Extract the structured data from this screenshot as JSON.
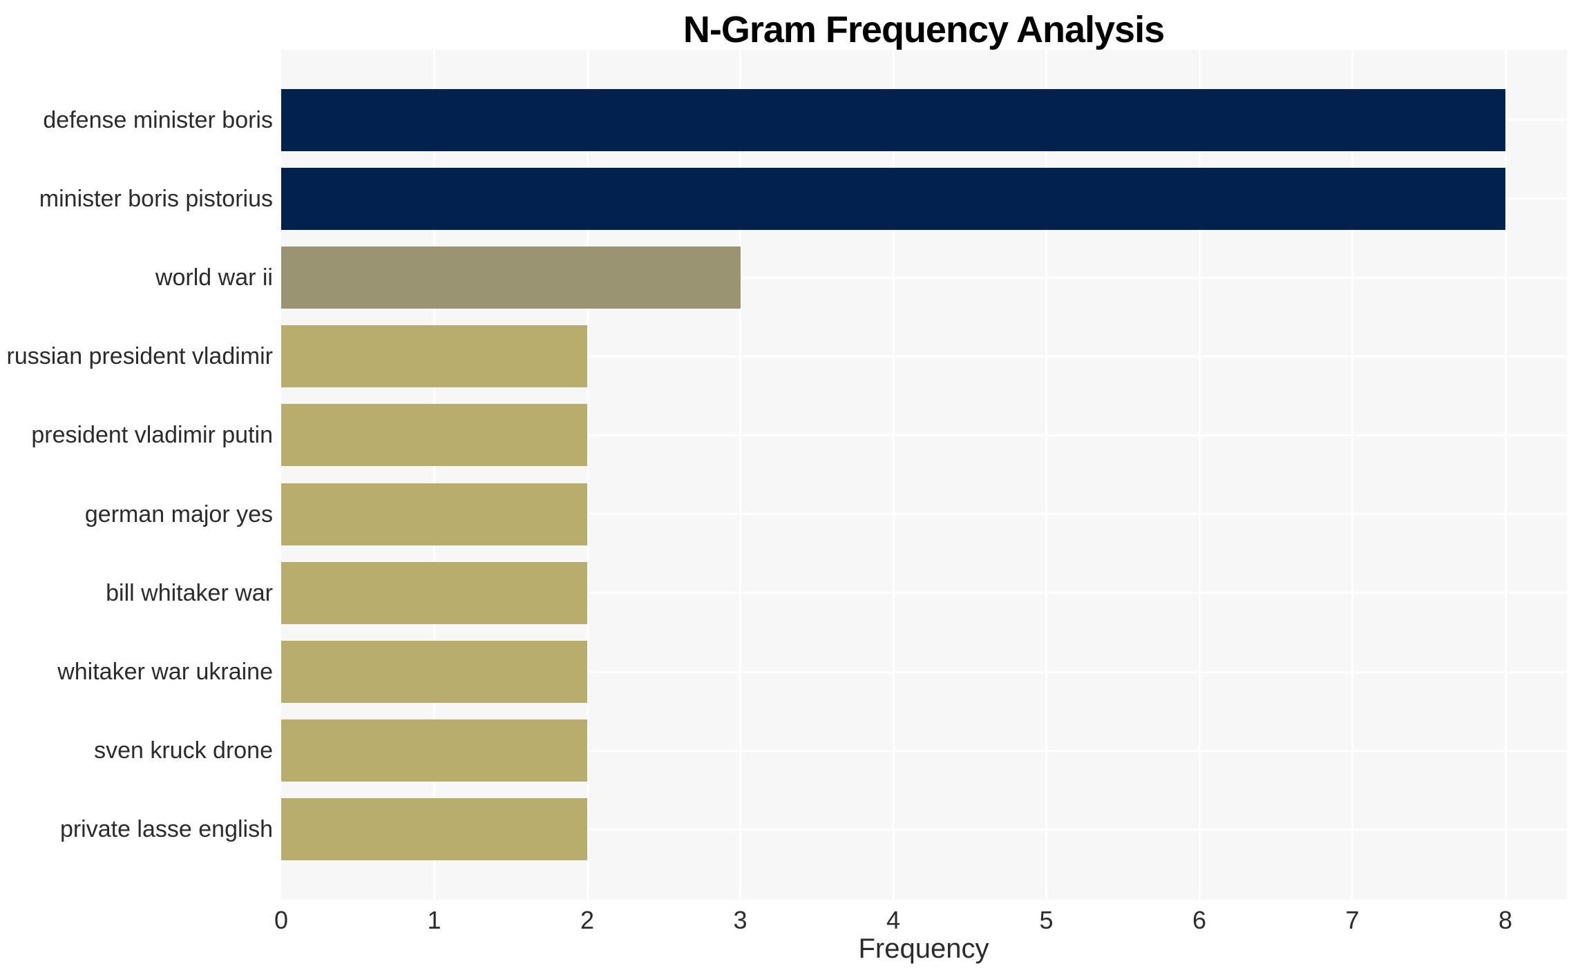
{
  "chart_data": {
    "type": "bar",
    "orientation": "horizontal",
    "title": "N-Gram Frequency Analysis",
    "xlabel": "Frequency",
    "ylabel": "",
    "categories": [
      "defense minister boris",
      "minister boris pistorius",
      "world war ii",
      "russian president vladimir",
      "president vladimir putin",
      "german major yes",
      "bill whitaker war",
      "whitaker war ukraine",
      "sven kruck drone",
      "private lasse english"
    ],
    "values": [
      8,
      8,
      3,
      2,
      2,
      2,
      2,
      2,
      2,
      2
    ],
    "xticks": [
      0,
      1,
      2,
      3,
      4,
      5,
      6,
      7,
      8
    ],
    "xlim": [
      0,
      8.4
    ],
    "grid": true,
    "legend": "none",
    "bar_fraction": 0.8,
    "bar_colors": [
      "#02214d",
      "#02214d",
      "#9a9472",
      "#b9ad6c",
      "#b9ad6c",
      "#b9ad6c",
      "#b9ad6c",
      "#b9ad6c",
      "#b9ad6c",
      "#b9ad6c"
    ],
    "colors": {
      "navy": "#02214d",
      "olive_gray": "#9a9472",
      "khaki": "#b9ad6c",
      "plot_background": "#f7f7f7",
      "gridline": "#ffffff",
      "tick_text": "#2b2b2b",
      "title_text": "#000000"
    }
  }
}
